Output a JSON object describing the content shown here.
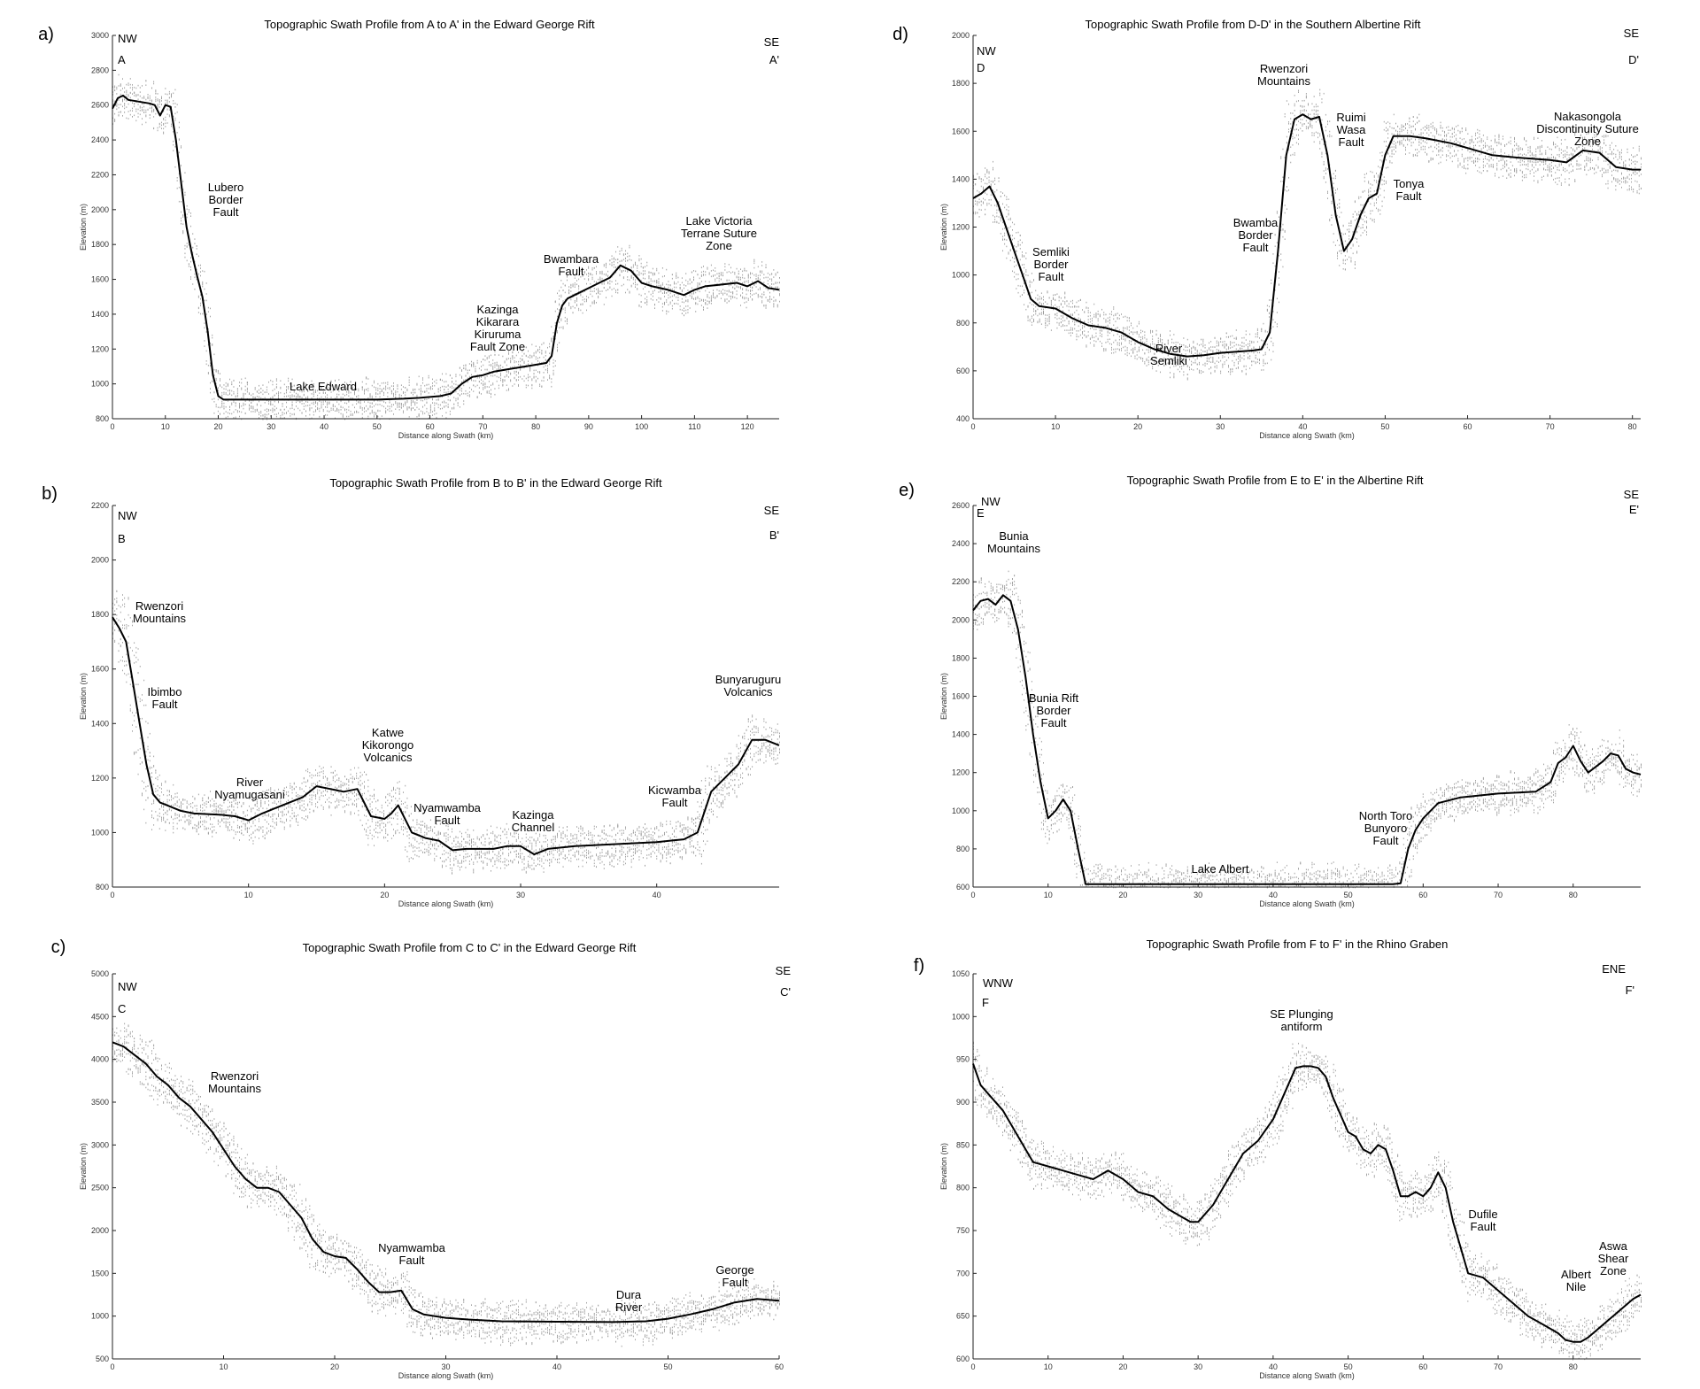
{
  "chart_data": [
    {
      "type": "line",
      "panel": "a)",
      "title": "Topographic Swath Profile from A to A' in the Edward George Rift",
      "xlabel": "Distance along Swath (km)",
      "ylabel": "Elevation (m)",
      "xlim": [
        0,
        126
      ],
      "ylim": [
        800,
        3000
      ],
      "xticks": [
        0,
        10,
        20,
        30,
        40,
        50,
        60,
        70,
        80,
        90,
        100,
        110,
        120
      ],
      "yticks": [
        800,
        1000,
        1200,
        1400,
        1600,
        1800,
        2000,
        2200,
        2400,
        2600,
        2800,
        3000
      ],
      "start_dir": "NW",
      "start_label": "A",
      "end_dir": "SE",
      "end_label": "A'",
      "series": [
        {
          "x": [
            0,
            1,
            2,
            3,
            5,
            7,
            8,
            9,
            10,
            11,
            12,
            13,
            14,
            15,
            16,
            17,
            18,
            19,
            20,
            21,
            22,
            30,
            40,
            50,
            55,
            58,
            60,
            62,
            64,
            66,
            68,
            70,
            72,
            74,
            76,
            78,
            80,
            82,
            83,
            84,
            85,
            86,
            88,
            90,
            92,
            94,
            96,
            98,
            100,
            102,
            105,
            108,
            110,
            112,
            115,
            118,
            120,
            122,
            124,
            126
          ],
          "y": [
            2580,
            2640,
            2655,
            2630,
            2620,
            2610,
            2600,
            2540,
            2600,
            2590,
            2400,
            2150,
            1900,
            1750,
            1620,
            1500,
            1300,
            1050,
            930,
            910,
            910,
            910,
            910,
            910,
            915,
            920,
            925,
            930,
            945,
            1000,
            1040,
            1050,
            1070,
            1080,
            1090,
            1100,
            1110,
            1120,
            1160,
            1350,
            1450,
            1490,
            1520,
            1550,
            1580,
            1610,
            1680,
            1650,
            1580,
            1560,
            1540,
            1510,
            1540,
            1560,
            1570,
            1580,
            1560,
            1590,
            1550,
            1540
          ]
        }
      ],
      "annotations": [
        "Lubero Border Fault",
        "Lake Edward",
        "Kazinga Kikarara Kiruruma Fault Zone",
        "Bwambara Fault",
        "Lake Victoria Terrane Suture Zone"
      ]
    },
    {
      "type": "line",
      "panel": "b)",
      "title": "Topographic Swath Profile from B to B' in the Edward George Rift",
      "xlabel": "Distance along Swath (km)",
      "ylabel": "Elevation (m)",
      "xlim": [
        0,
        49
      ],
      "ylim": [
        800,
        2200
      ],
      "xticks": [
        0,
        10,
        20,
        30,
        40
      ],
      "yticks": [
        800,
        1000,
        1200,
        1400,
        1600,
        1800,
        2000,
        2200
      ],
      "start_dir": "NW",
      "start_label": "B",
      "end_dir": "SE",
      "end_label": "B'",
      "series": [
        {
          "x": [
            0,
            0.5,
            1,
            1.5,
            2,
            2.5,
            3,
            3.5,
            4,
            5,
            6,
            8,
            9,
            10,
            11,
            12,
            14,
            15,
            16,
            17,
            18,
            19,
            20,
            20.5,
            21,
            22,
            23,
            24,
            25,
            26,
            28,
            29,
            30,
            31,
            32,
            34,
            36,
            38,
            40,
            42,
            43,
            44,
            45,
            46,
            47,
            48,
            49
          ],
          "y": [
            1790,
            1750,
            1700,
            1550,
            1400,
            1250,
            1140,
            1110,
            1100,
            1080,
            1070,
            1065,
            1060,
            1045,
            1070,
            1090,
            1130,
            1170,
            1160,
            1150,
            1160,
            1060,
            1050,
            1070,
            1100,
            1000,
            980,
            970,
            935,
            940,
            940,
            950,
            950,
            920,
            940,
            950,
            955,
            960,
            965,
            975,
            1000,
            1150,
            1200,
            1250,
            1340,
            1340,
            1320
          ]
        }
      ],
      "annotations": [
        "Rwenzori Mountains",
        "Ibimbo Fault",
        "River Nyamugasani",
        "Katwe Kikorongo Volcanics",
        "Nyamwamba Fault",
        "Kazinga Channel",
        "Kicwamba Fault",
        "Bunyaruguru Volcanics"
      ]
    },
    {
      "type": "line",
      "panel": "c)",
      "title": "Topographic Swath Profile from C to C' in the Edward George Rift",
      "xlabel": "Distance along Swath (km)",
      "ylabel": "Elevation (m)",
      "xlim": [
        0,
        60
      ],
      "ylim": [
        500,
        5000
      ],
      "xticks": [
        0,
        10,
        20,
        30,
        40,
        50,
        60
      ],
      "yticks": [
        500,
        1000,
        1500,
        2000,
        2500,
        3000,
        3500,
        4000,
        4500,
        5000
      ],
      "start_dir": "NW",
      "start_label": "C",
      "end_dir": "SE",
      "end_label": "C'",
      "series": [
        {
          "x": [
            0,
            1,
            2,
            3,
            4,
            5,
            6,
            7,
            8,
            9,
            10,
            11,
            12,
            13,
            14,
            15,
            16,
            17,
            18,
            19,
            20,
            21,
            22,
            23,
            24,
            25,
            26,
            27,
            28,
            30,
            32,
            35,
            40,
            45,
            48,
            50,
            52,
            54,
            56,
            58,
            60
          ],
          "y": [
            4200,
            4150,
            4050,
            3950,
            3800,
            3700,
            3550,
            3450,
            3300,
            3150,
            2950,
            2750,
            2600,
            2500,
            2500,
            2450,
            2300,
            2150,
            1900,
            1750,
            1700,
            1680,
            1550,
            1400,
            1280,
            1280,
            1300,
            1080,
            1020,
            980,
            960,
            940,
            935,
            930,
            940,
            970,
            1020,
            1080,
            1160,
            1200,
            1180
          ]
        }
      ],
      "annotations": [
        "Rwenzori Mountains",
        "Nyamwamba Fault",
        "Dura River",
        "George Fault"
      ]
    },
    {
      "type": "line",
      "panel": "d)",
      "title": "Topographic Swath Profile from D-D' in the Southern Albertine Rift",
      "xlabel": "Distance along Swath (km)",
      "ylabel": "Elevation (m)",
      "xlim": [
        0,
        81
      ],
      "ylim": [
        400,
        2000
      ],
      "xticks": [
        0,
        10,
        20,
        30,
        40,
        50,
        60,
        70,
        80
      ],
      "yticks": [
        400,
        600,
        800,
        1000,
        1200,
        1400,
        1600,
        1800,
        2000
      ],
      "start_dir": "NW",
      "start_label": "D",
      "end_dir": "SE",
      "end_label": "D'",
      "series": [
        {
          "x": [
            0,
            1,
            2,
            3,
            4,
            5,
            6,
            7,
            8,
            10,
            12,
            14,
            16,
            18,
            20,
            22,
            24,
            26,
            28,
            30,
            32,
            34,
            35,
            36,
            37,
            38,
            39,
            40,
            41,
            42,
            43,
            44,
            45,
            46,
            47,
            48,
            49,
            50,
            51,
            53,
            55,
            58,
            60,
            63,
            66,
            70,
            72,
            74,
            76,
            78,
            80,
            81
          ],
          "y": [
            1320,
            1340,
            1370,
            1300,
            1200,
            1100,
            1000,
            900,
            870,
            860,
            820,
            790,
            780,
            760,
            720,
            690,
            670,
            660,
            665,
            675,
            680,
            685,
            690,
            760,
            1100,
            1500,
            1650,
            1670,
            1650,
            1660,
            1500,
            1250,
            1100,
            1150,
            1250,
            1320,
            1340,
            1500,
            1580,
            1580,
            1570,
            1550,
            1530,
            1500,
            1490,
            1480,
            1470,
            1520,
            1510,
            1450,
            1440,
            1440
          ]
        }
      ],
      "annotations": [
        "Rwenzori Mountains",
        "Ruimi Wasa Fault",
        "Tonya Fault",
        "Bwamba Border Fault",
        "Semliki Border Fault",
        "River Semliki",
        "Nakasongola Discontinuity Suture Zone"
      ]
    },
    {
      "type": "line",
      "panel": "e)",
      "title": "Topographic Swath Profile from E to E' in the Albertine Rift",
      "xlabel": "Distance along Swath (km)",
      "ylabel": "Elevation (m)",
      "xlim": [
        0,
        89
      ],
      "ylim": [
        600,
        2600
      ],
      "xticks": [
        0,
        10,
        20,
        30,
        40,
        50,
        60,
        70,
        80
      ],
      "yticks": [
        600,
        800,
        1000,
        1200,
        1400,
        1600,
        1800,
        2000,
        2200,
        2400,
        2600
      ],
      "start_dir": "NW",
      "start_label": "E",
      "end_dir": "SE",
      "end_label": "E'",
      "series": [
        {
          "x": [
            0,
            1,
            2,
            3,
            4,
            5,
            6,
            7,
            8,
            9,
            10,
            11,
            12,
            13,
            14,
            15,
            20,
            30,
            40,
            50,
            56,
            57,
            58,
            59,
            60,
            62,
            65,
            70,
            75,
            77,
            78,
            79,
            80,
            81,
            82,
            84,
            85,
            86,
            87,
            88,
            89
          ],
          "y": [
            2050,
            2100,
            2110,
            2080,
            2130,
            2100,
            1950,
            1700,
            1400,
            1150,
            960,
            1000,
            1060,
            1000,
            800,
            615,
            615,
            615,
            615,
            615,
            615,
            620,
            800,
            900,
            960,
            1040,
            1070,
            1090,
            1100,
            1150,
            1250,
            1280,
            1340,
            1260,
            1200,
            1260,
            1300,
            1290,
            1220,
            1200,
            1190
          ]
        }
      ],
      "annotations": [
        "Bunia Mountains",
        "Bunia Rift Border Fault",
        "Lake Albert",
        "North Toro Bunyoro Fault"
      ]
    },
    {
      "type": "line",
      "panel": "f)",
      "title": "Topographic Swath Profile from F to F' in the Rhino Graben",
      "xlabel": "Distance along Swath (km)",
      "ylabel": "Elevation (m)",
      "xlim": [
        0,
        89
      ],
      "ylim": [
        600,
        1050
      ],
      "xticks": [
        0,
        10,
        20,
        30,
        40,
        50,
        60,
        70,
        80
      ],
      "yticks": [
        600,
        650,
        700,
        750,
        800,
        850,
        900,
        950,
        1000,
        1050
      ],
      "start_dir": "WNW",
      "start_label": "F",
      "end_dir": "ENE",
      "end_label": "F'",
      "series": [
        {
          "x": [
            0,
            1,
            2,
            4,
            6,
            8,
            10,
            12,
            14,
            16,
            18,
            20,
            22,
            24,
            26,
            28,
            29,
            30,
            32,
            34,
            36,
            38,
            40,
            42,
            43,
            44,
            45,
            46,
            47,
            48,
            50,
            51,
            52,
            53,
            54,
            55,
            56,
            57,
            58,
            59,
            60,
            61,
            62,
            63,
            64,
            65,
            66,
            68,
            70,
            72,
            74,
            76,
            78,
            79,
            80,
            81,
            82,
            84,
            86,
            88,
            89
          ],
          "y": [
            945,
            920,
            910,
            890,
            860,
            830,
            825,
            820,
            815,
            810,
            820,
            810,
            795,
            790,
            775,
            765,
            760,
            760,
            780,
            810,
            840,
            855,
            880,
            920,
            940,
            942,
            942,
            940,
            930,
            905,
            865,
            860,
            845,
            840,
            850,
            845,
            820,
            790,
            790,
            795,
            790,
            800,
            818,
            800,
            760,
            730,
            700,
            695,
            680,
            665,
            650,
            640,
            630,
            622,
            620,
            620,
            625,
            640,
            655,
            670,
            675
          ]
        }
      ],
      "annotations": [
        "SE Plunging antiform",
        "Dufile Fault",
        "Albert Nile",
        "Aswa Shear Zone"
      ]
    }
  ]
}
